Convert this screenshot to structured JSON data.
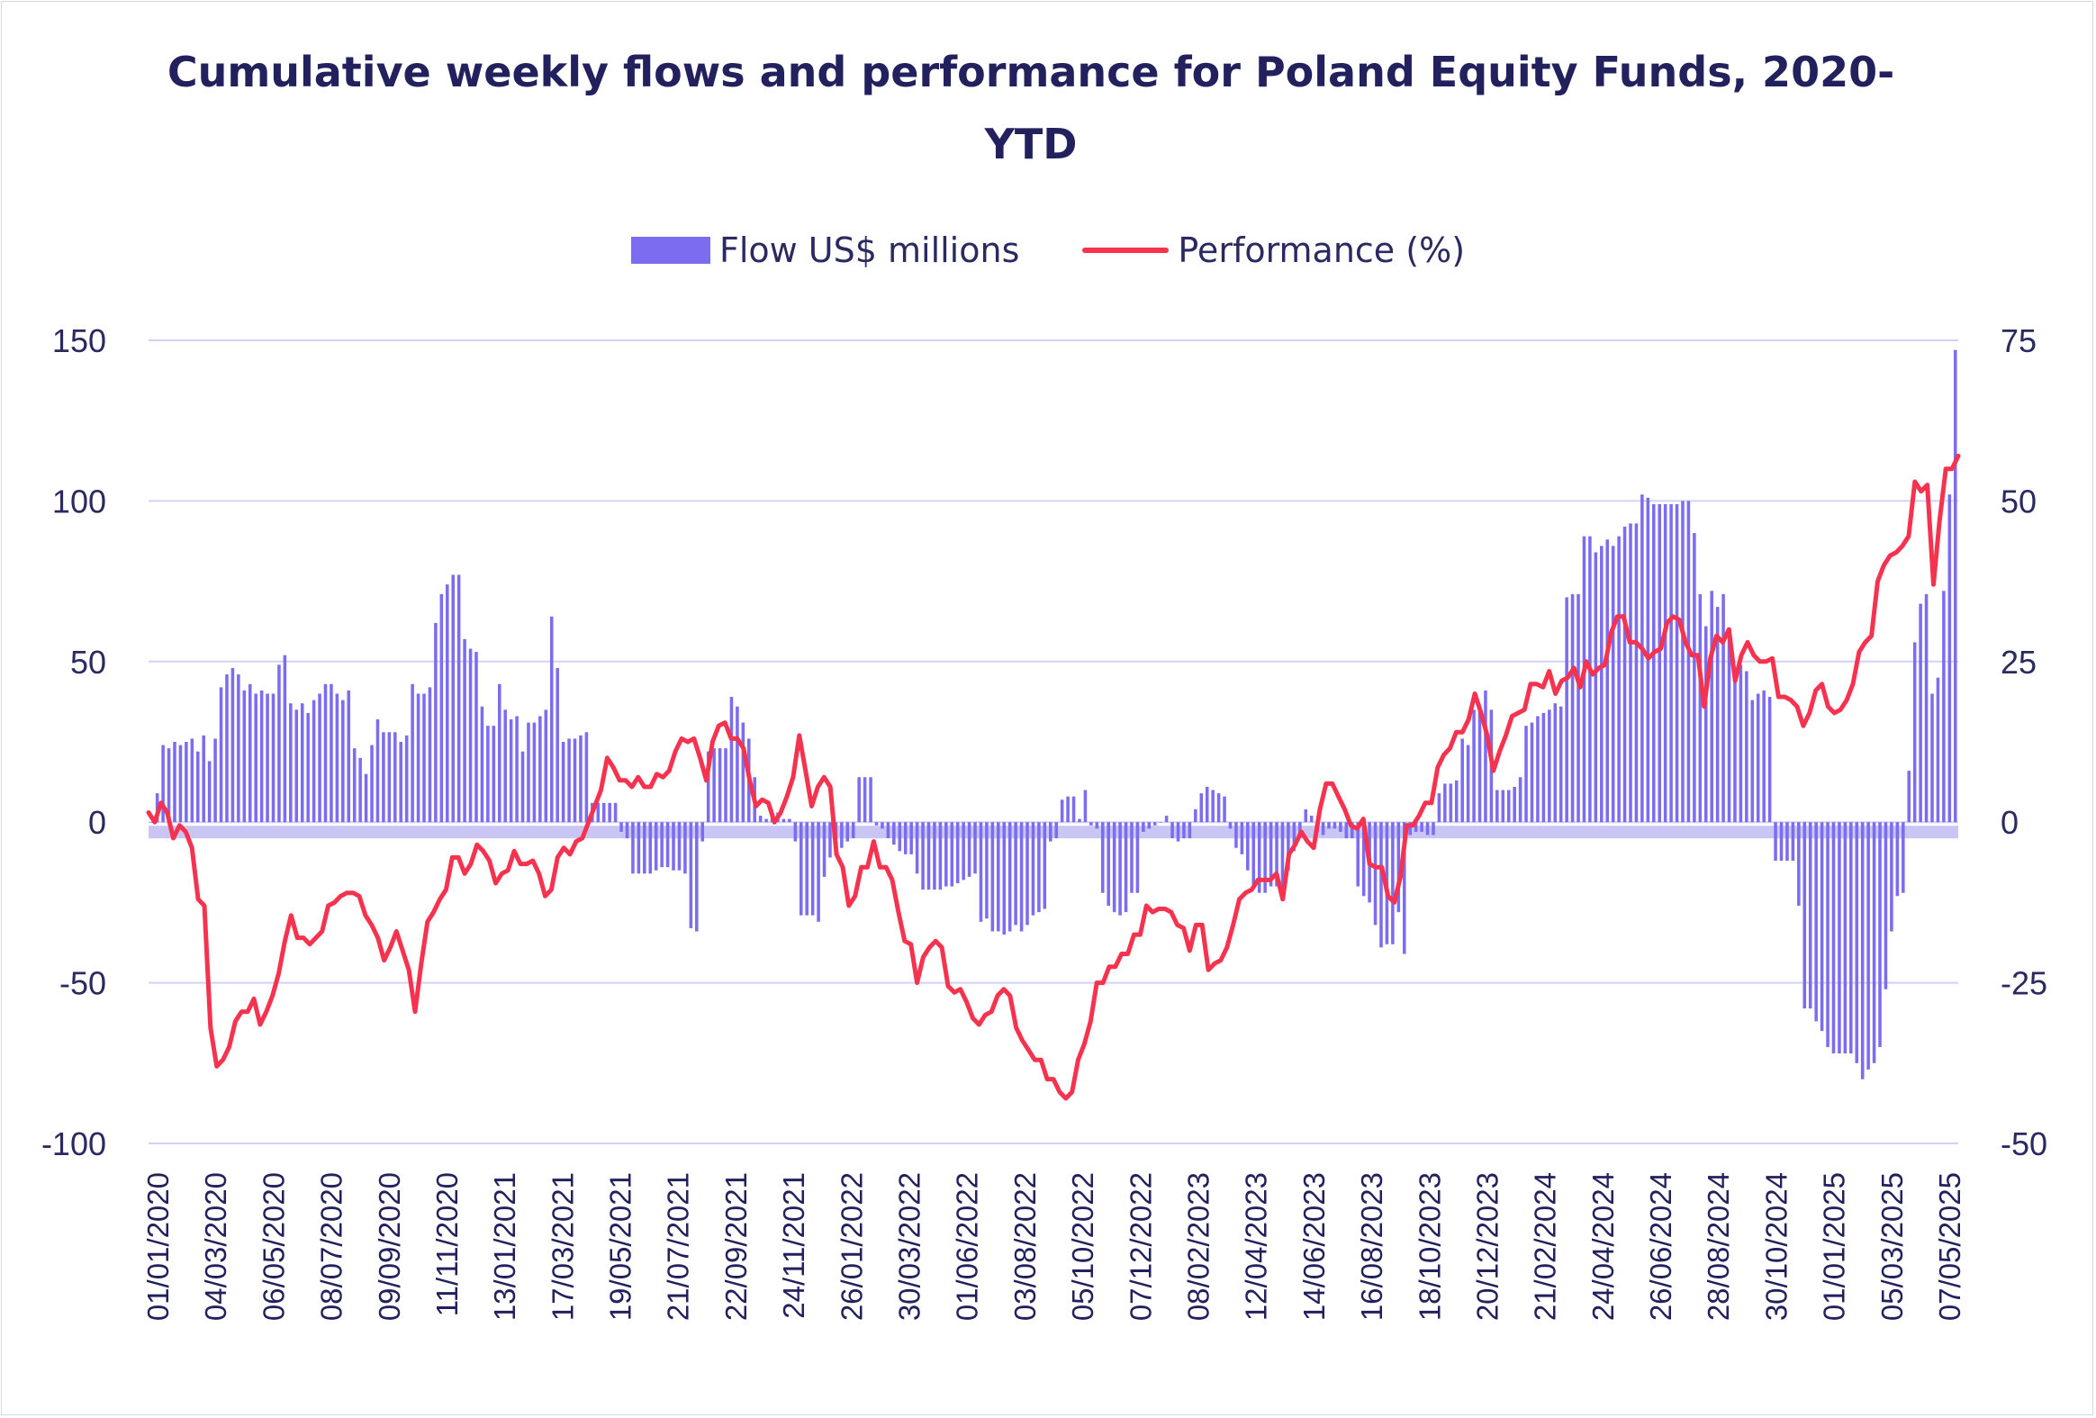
{
  "chart_data": {
    "type": "bar+line",
    "title": "Cumulative weekly flows and performance for Poland Equity Funds, 2020-YTD",
    "legend": {
      "placement": "top-center",
      "items": [
        "Flow US$ millions",
        "Performance (%)"
      ]
    },
    "colors": {
      "bars": "#7b6cf0",
      "line": "#f5334f",
      "grid": "#d4d2f4",
      "zero_band": "#c9c6f6",
      "text": "#23205e"
    },
    "y_left": {
      "min": -100,
      "max": 150,
      "ticks": [
        "-100",
        "-50",
        "0",
        "50",
        "100",
        "150"
      ]
    },
    "y_right": {
      "min": -50,
      "max": 75,
      "ticks": [
        "-50",
        "-25",
        "0",
        "25",
        "50",
        "75"
      ]
    },
    "x_tick_labels": [
      "01/01/2020",
      "04/03/2020",
      "06/05/2020",
      "08/07/2020",
      "09/09/2020",
      "11/11/2020",
      "13/01/2021",
      "17/03/2021",
      "19/05/2021",
      "21/07/2021",
      "22/09/2021",
      "24/11/2021",
      "26/01/2022",
      "30/03/2022",
      "01/06/2022",
      "03/08/2022",
      "05/10/2022",
      "07/12/2022",
      "08/02/2023",
      "12/04/2023",
      "14/06/2023",
      "16/08/2023",
      "18/10/2023",
      "20/12/2023",
      "21/02/2024",
      "24/04/2024",
      "26/06/2024",
      "28/08/2024",
      "30/10/2024",
      "01/01/2025",
      "05/03/2025",
      "07/05/2025"
    ],
    "series": [
      {
        "name": "Flow US$ millions",
        "type": "bar",
        "axis": "left",
        "values": [
          0,
          9,
          24,
          23,
          25,
          24,
          25,
          26,
          22,
          27,
          19,
          26,
          42,
          46,
          48,
          46,
          41,
          43,
          40,
          41,
          40,
          40,
          49,
          52,
          37,
          35,
          37,
          34,
          38,
          40,
          43,
          43,
          40,
          38,
          41,
          23,
          20,
          15,
          24,
          32,
          28,
          28,
          28,
          25,
          27,
          43,
          40,
          40,
          42,
          62,
          71,
          74,
          77,
          77,
          57,
          54,
          53,
          36,
          30,
          30,
          43,
          35,
          32,
          33,
          22,
          31,
          31,
          33,
          35,
          64,
          48,
          25,
          26,
          26,
          27,
          28,
          6,
          6,
          6,
          6,
          6,
          -3,
          -5,
          -16,
          -16,
          -16,
          -16,
          -15,
          -14,
          -14,
          -15,
          -15,
          -16,
          -33,
          -34,
          -6,
          22,
          23,
          23,
          23,
          39,
          36,
          31,
          26,
          14,
          2,
          1,
          2,
          3,
          1,
          1,
          -6,
          -29,
          -29,
          -29,
          -31,
          -17,
          -11,
          -10,
          -8,
          -6,
          -5,
          14,
          14,
          14,
          -1,
          -2,
          -5,
          -7,
          -9,
          -10,
          -10,
          -16,
          -21,
          -21,
          -21,
          -21,
          -20,
          -20,
          -19,
          -18,
          -17,
          -16,
          -31,
          -30,
          -34,
          -34,
          -35,
          -34,
          -32,
          -34,
          -32,
          -29,
          -28,
          -27,
          -6,
          -5,
          7,
          8,
          8,
          1,
          10,
          -1,
          -2,
          -22,
          -26,
          -28,
          -29,
          -28,
          -22,
          -22,
          -3,
          -2,
          -1,
          0,
          2,
          -5,
          -6,
          -5,
          -5,
          4,
          9,
          11,
          10,
          9,
          8,
          -2,
          -8,
          -10,
          -15,
          -20,
          -22,
          -22,
          -20,
          -20,
          -24,
          -15,
          -9,
          -5,
          4,
          2,
          -3,
          -4,
          -2,
          -2,
          -3,
          -5,
          -5,
          -20,
          -23,
          -25,
          -32,
          -39,
          -38,
          -38,
          -28,
          -41,
          -4,
          -3,
          -3,
          -4,
          -4,
          9,
          12,
          12,
          13,
          26,
          24,
          35,
          36,
          41,
          35,
          10,
          10,
          10,
          11,
          14,
          30,
          31,
          33,
          34,
          35,
          37,
          36,
          70,
          71,
          71,
          89,
          89,
          84,
          86,
          88,
          86,
          89,
          92,
          93,
          93,
          102,
          101,
          99,
          99,
          99,
          99,
          99,
          100,
          100,
          90,
          71,
          61,
          72,
          67,
          71,
          58,
          48,
          49,
          47,
          38,
          40,
          41,
          39,
          -12,
          -12,
          -12,
          -12,
          -26,
          -58,
          -58,
          -62,
          -65,
          -70,
          -72,
          -72,
          -72,
          -72,
          -75,
          -80,
          -77,
          -75,
          -70,
          -52,
          -34,
          -23,
          -22,
          16,
          56,
          68,
          71,
          40,
          45,
          72,
          102,
          147
        ]
      },
      {
        "name": "Performance (%)",
        "type": "line",
        "axis": "right",
        "values": [
          1.5,
          0,
          3,
          1.5,
          -2.5,
          -0.5,
          -1.5,
          -4,
          -12,
          -13,
          -32,
          -38,
          -37,
          -35,
          -31,
          -29.5,
          -29.5,
          -27.5,
          -31.5,
          -29.5,
          -27,
          -23.5,
          -18.5,
          -14.5,
          -18,
          -18,
          -19,
          -18,
          -17,
          -13,
          -12.5,
          -11.5,
          -11,
          -11,
          -11.5,
          -14.5,
          -16,
          -18,
          -21.5,
          -19.5,
          -17,
          -20,
          -23,
          -29.5,
          -22,
          -15.5,
          -14,
          -12,
          -10.5,
          -5.5,
          -5.5,
          -8,
          -6.5,
          -3.5,
          -4.5,
          -6,
          -9.5,
          -8,
          -7.5,
          -4.5,
          -6.5,
          -6.5,
          -6,
          -8,
          -11.5,
          -10.5,
          -5.5,
          -4,
          -5,
          -3,
          -2.5,
          0,
          2.5,
          5,
          10,
          8.5,
          6.5,
          6.5,
          5.5,
          7,
          5.5,
          5.5,
          7.5,
          7,
          8,
          11,
          13,
          12.5,
          13,
          10,
          6.5,
          12.5,
          15,
          15.5,
          13,
          13,
          11.5,
          6.5,
          2.5,
          3.5,
          3,
          0,
          1.5,
          4,
          7,
          13.5,
          8,
          2.5,
          5.5,
          7,
          5.5,
          -5,
          -7,
          -13,
          -11.5,
          -7,
          -7,
          -3,
          -7,
          -7,
          -9,
          -14,
          -18.5,
          -19,
          -25,
          -21,
          -19.5,
          -18.5,
          -19.5,
          -25.5,
          -26.5,
          -26,
          -28,
          -30.5,
          -31.5,
          -30,
          -29.5,
          -27,
          -26,
          -27,
          -32,
          -34,
          -35.5,
          -37,
          -37,
          -40,
          -40,
          -42,
          -43,
          -42,
          -37,
          -34.5,
          -31,
          -25,
          -25,
          -22.5,
          -22.5,
          -20.5,
          -20.5,
          -17.5,
          -17.5,
          -13,
          -14,
          -13.5,
          -13.5,
          -14,
          -16,
          -16.5,
          -20,
          -16,
          -16,
          -23,
          -22,
          -21.5,
          -19.5,
          -16,
          -12,
          -11,
          -10.5,
          -9,
          -9,
          -9,
          -8,
          -12,
          -5,
          -3.5,
          -1.5,
          -3,
          -4,
          2,
          6,
          6,
          4,
          2,
          -0.5,
          -1,
          0.5,
          -6.5,
          -7,
          -7,
          -11.5,
          -12.5,
          -8.5,
          -0.5,
          -0.5,
          1,
          3,
          3,
          8.5,
          10.5,
          11.5,
          14,
          14,
          16,
          20,
          17,
          13.5,
          8,
          11,
          13.5,
          16.5,
          17,
          17.5,
          21.5,
          21.5,
          21,
          23.5,
          20,
          22,
          22.5,
          24,
          21,
          25,
          23,
          24,
          24.5,
          29.5,
          32,
          32,
          28,
          28,
          27,
          25.5,
          26.5,
          27,
          31,
          32,
          31.5,
          28,
          26,
          26,
          18,
          25.5,
          29,
          28,
          30,
          22,
          26,
          28,
          26,
          25,
          25,
          25.5,
          19.5,
          19.5,
          19,
          18,
          15,
          17,
          20.5,
          21.5,
          18,
          17,
          17.5,
          19,
          21.5,
          26.5,
          28,
          29,
          37.5,
          40,
          41.5,
          42,
          43,
          44.5,
          53,
          51.5,
          52.5,
          37,
          47,
          55,
          55,
          57
        ]
      }
    ]
  }
}
